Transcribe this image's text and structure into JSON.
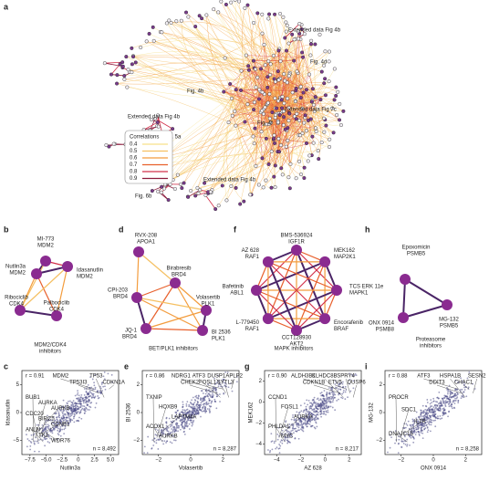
{
  "panel_labels": {
    "a": "a",
    "b": "b",
    "d": "d",
    "f": "f",
    "h": "h",
    "c": "c",
    "e": "e",
    "g": "g",
    "i": "i"
  },
  "network": {
    "legend_title": "Correlations",
    "legend_levels": [
      "0.4",
      "0.5",
      "0.6",
      "0.7",
      "0.8",
      "0.9"
    ],
    "annotations": [
      "Extended data Fig 4b",
      "Fig. 4d",
      "Fig. 4b",
      "Extended data Fig 7c",
      "Fig. 4f",
      "Extended data Fig 4b",
      "Fig. 5a",
      "Fig. 4h",
      "Extended data Fig 4b",
      "Fig. 6b"
    ]
  },
  "clusters": {
    "b": {
      "nodes": [
        {
          "drug": "MI-773",
          "target": "MDM2"
        },
        {
          "drug": "Nutlin3a",
          "target": "MDM2"
        },
        {
          "drug": "Idasanutlin",
          "target": "MDM2"
        },
        {
          "drug": "Ribociclib",
          "target": "CDK4"
        },
        {
          "drug": "Palbociclib",
          "target": "CDK4"
        }
      ],
      "caption": [
        "MDM2/CDK4",
        "inhibitors"
      ]
    },
    "d": {
      "nodes": [
        {
          "drug": "RVX-208",
          "target": "APOA1"
        },
        {
          "drug": "Birabresib",
          "target": "BRD4"
        },
        {
          "drug": "CPI-203",
          "target": "BRD4"
        },
        {
          "drug": "Volasertib",
          "target": "PLK1"
        },
        {
          "drug": "JQ-1",
          "target": "BRD4"
        },
        {
          "drug": "BI 2536",
          "target": "PLK1"
        }
      ],
      "caption": [
        "BET/PLK1 inhibitors"
      ]
    },
    "f": {
      "nodes": [
        {
          "drug": "BMS-536924",
          "target": "IGF1R"
        },
        {
          "drug": "MEK162",
          "target": "MAP2K1"
        },
        {
          "drug": "TCS ERK 11e",
          "target": "MAPK1"
        },
        {
          "drug": "Encorafenib",
          "target": "BRAF"
        },
        {
          "drug": "CCT128930",
          "target": "AKT2"
        },
        {
          "drug": "L-779450",
          "target": "RAF1"
        },
        {
          "drug": "Bafetinib",
          "target": "ABL1"
        },
        {
          "drug": "AZ 628",
          "target": "RAF1"
        }
      ],
      "caption": [
        "MAPK inhibitors"
      ]
    },
    "h": {
      "nodes": [
        {
          "drug": "Epoxomicin",
          "target": "PSMB5"
        },
        {
          "drug": "MG-132",
          "target": "PSMB5"
        },
        {
          "drug": "ONX 0914",
          "target": "PSMB8"
        }
      ],
      "caption": [
        "Proteasome",
        "inhibitors"
      ]
    }
  },
  "scatters": {
    "c": {
      "xlabel": "Nutlin3a",
      "ylabel": "Idasanutlin",
      "r": "r = 0.91",
      "n": "n = 8,492",
      "xticks": [
        "−7.5",
        "−5.0",
        "−2.5",
        "0",
        "2.5",
        "5.0"
      ],
      "yticks": [
        "5",
        "0",
        "−5"
      ],
      "genes_up": [
        "MDM2",
        "TP53I3",
        "TP53",
        "CDKN1A"
      ],
      "genes_down": [
        "BUB1",
        "AURKA",
        "AURKB",
        "CDC20",
        "BIRC5",
        "CCNB1",
        "ANLN",
        "TK1",
        "WDR76"
      ]
    },
    "e": {
      "xlabel": "Volasertib",
      "ylabel": "BI 2536",
      "r": "r = 0.86",
      "n": "n = 8,287",
      "xticks": [
        "−2",
        "0",
        "2"
      ],
      "yticks": [
        "2",
        "0",
        "−2"
      ],
      "genes_up": [
        "NDRG1",
        "CHEK2",
        "ATF3",
        "FOSL1",
        "DUSP1",
        "SYTL3",
        "APLP2"
      ],
      "genes_down": [
        "TXNIP",
        "HOXB9",
        "LAPTM4A",
        "ACOX1",
        "AURKB"
      ]
    },
    "g": {
      "xlabel": "AZ 628",
      "ylabel": "MEK162",
      "r": "r = 0.90",
      "n": "n = 8,217",
      "xticks": [
        "−4",
        "−2",
        "0",
        "2"
      ],
      "yticks": [
        "2",
        "0",
        "−2",
        "−4"
      ],
      "genes_up": [
        "ALDH3B1",
        "CDKN1B",
        "KLHDC8B",
        "ETV5",
        "SPRY4",
        "DUSP6"
      ],
      "genes_down": [
        "CCND1",
        "FOSL1",
        "AURKA",
        "PHLDA1",
        "MYC"
      ]
    },
    "i": {
      "xlabel": "ONX 0914",
      "ylabel": "MG-132",
      "r": "r = 0.88",
      "n": "n = 8,258",
      "xticks": [
        "−2",
        "0",
        "2"
      ],
      "yticks": [
        "2",
        "0",
        "−2"
      ],
      "genes_up": [
        "ATF3",
        "DDIT3",
        "HSPA1B",
        "CHAC1",
        "SESN2"
      ],
      "genes_down": [
        "PROCR",
        "SDC1",
        "IL7R",
        "DNAJC15"
      ]
    }
  }
}
